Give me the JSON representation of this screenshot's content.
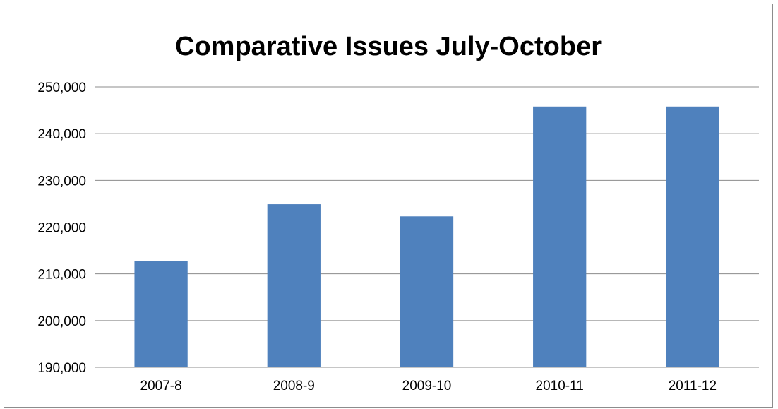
{
  "chart_data": {
    "type": "bar",
    "title": "Comparative Issues July-October",
    "xlabel": "",
    "ylabel": "",
    "categories": [
      "2007-8",
      "2008-9",
      "2009-10",
      "2010-11",
      "2011-12"
    ],
    "values": [
      212700,
      224900,
      222300,
      245800,
      245800
    ],
    "ylim": [
      190000,
      250000
    ],
    "yticks": [
      190000,
      200000,
      210000,
      220000,
      230000,
      240000,
      250000
    ],
    "ytick_labels": [
      "190,000",
      "200,000",
      "210,000",
      "220,000",
      "230,000",
      "240,000",
      "250,000"
    ],
    "grid": true,
    "legend": "none",
    "bar_color": "#4f81bd"
  }
}
